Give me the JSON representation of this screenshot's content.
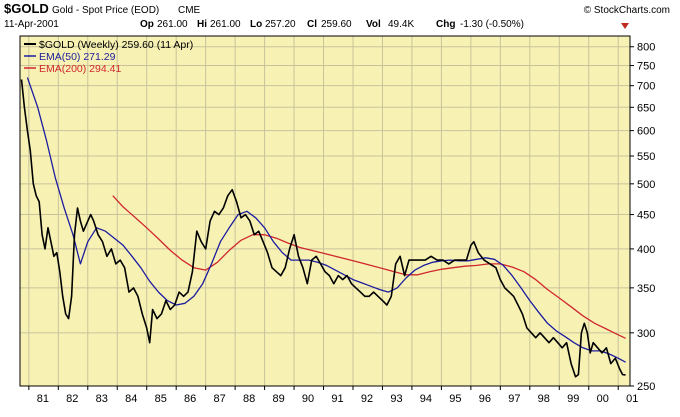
{
  "header": {
    "symbol": "$GOLD",
    "name": "Gold - Spot Price (EOD)",
    "exchange": "CME",
    "date": "11-Apr-2001",
    "open_label": "Op",
    "open_value": "261.00",
    "high_label": "Hi",
    "high_value": "261.00",
    "low_label": "Lo",
    "low_value": "257.20",
    "close_label": "Cl",
    "close_value": "259.60",
    "vol_label": "Vol",
    "vol_value": "49.4K",
    "chg_label": "Chg",
    "chg_value": "-1.30 (-0.50%)",
    "copyright": "© StockCharts.com"
  },
  "colors": {
    "background": "#f7f2b4",
    "price": "#000000",
    "ema50": "#1c1ca0",
    "ema200": "#d0262e",
    "down_arrow": "#c0281e"
  },
  "chart_data": {
    "type": "line",
    "log_scale": true,
    "grid": true,
    "legend_placement": "top-left",
    "ylim": [
      250,
      830
    ],
    "xlim": [
      1980.7,
      2001.4
    ],
    "yticks": [
      250,
      300,
      350,
      400,
      450,
      500,
      550,
      600,
      650,
      700,
      750,
      800
    ],
    "xticks": [
      {
        "value": 1981,
        "label": "81"
      },
      {
        "value": 1982,
        "label": "82"
      },
      {
        "value": 1983,
        "label": "83"
      },
      {
        "value": 1984,
        "label": "84"
      },
      {
        "value": 1985,
        "label": "85"
      },
      {
        "value": 1986,
        "label": "86"
      },
      {
        "value": 1987,
        "label": "87"
      },
      {
        "value": 1988,
        "label": "88"
      },
      {
        "value": 1989,
        "label": "89"
      },
      {
        "value": 1990,
        "label": "90"
      },
      {
        "value": 1991,
        "label": "91"
      },
      {
        "value": 1992,
        "label": "92"
      },
      {
        "value": 1993,
        "label": "93"
      },
      {
        "value": 1994,
        "label": "94"
      },
      {
        "value": 1995,
        "label": "95"
      },
      {
        "value": 1996,
        "label": "96"
      },
      {
        "value": 1997,
        "label": "97"
      },
      {
        "value": 1998,
        "label": "98"
      },
      {
        "value": 1999,
        "label": "99"
      },
      {
        "value": 2000,
        "label": "00"
      },
      {
        "value": 2001,
        "label": "01"
      }
    ],
    "series": [
      {
        "name": "$GOLD (Weekly) 259.60 (11 Apr)",
        "x": [
          1980.75,
          1980.85,
          1980.95,
          1981.05,
          1981.15,
          1981.25,
          1981.35,
          1981.45,
          1981.55,
          1981.65,
          1981.75,
          1981.85,
          1981.95,
          1982.05,
          1982.15,
          1982.25,
          1982.35,
          1982.45,
          1982.55,
          1982.65,
          1982.75,
          1982.85,
          1983.0,
          1983.1,
          1983.2,
          1983.35,
          1983.5,
          1983.65,
          1983.8,
          1983.95,
          1984.1,
          1984.25,
          1984.4,
          1984.55,
          1984.7,
          1984.85,
          1985.0,
          1985.1,
          1985.2,
          1985.35,
          1985.5,
          1985.65,
          1985.8,
          1985.95,
          1986.1,
          1986.25,
          1986.4,
          1986.55,
          1986.7,
          1986.85,
          1987.0,
          1987.15,
          1987.3,
          1987.45,
          1987.6,
          1987.75,
          1987.9,
          1988.05,
          1988.2,
          1988.35,
          1988.5,
          1988.65,
          1988.8,
          1988.95,
          1989.1,
          1989.25,
          1989.4,
          1989.55,
          1989.7,
          1989.85,
          1990.0,
          1990.15,
          1990.3,
          1990.45,
          1990.6,
          1990.75,
          1990.9,
          1991.05,
          1991.2,
          1991.35,
          1991.5,
          1991.65,
          1991.8,
          1991.95,
          1992.1,
          1992.25,
          1992.4,
          1992.55,
          1992.7,
          1992.85,
          1993.0,
          1993.15,
          1993.3,
          1993.45,
          1993.6,
          1993.75,
          1993.9,
          1994.05,
          1994.25,
          1994.45,
          1994.65,
          1994.85,
          1995.05,
          1995.25,
          1995.45,
          1995.65,
          1995.85,
          1996.0,
          1996.1,
          1996.25,
          1996.45,
          1996.65,
          1996.85,
          1997.0,
          1997.15,
          1997.3,
          1997.45,
          1997.6,
          1997.75,
          1997.9,
          1998.05,
          1998.2,
          1998.35,
          1998.5,
          1998.65,
          1998.8,
          1998.95,
          1999.1,
          1999.25,
          1999.4,
          1999.55,
          1999.65,
          1999.75,
          1999.85,
          1999.95,
          2000.05,
          2000.15,
          2000.3,
          2000.45,
          2000.6,
          2000.75,
          2000.9,
          2001.05,
          2001.15,
          2001.25
        ],
        "values": [
          715,
          650,
          600,
          560,
          500,
          480,
          470,
          420,
          400,
          430,
          410,
          390,
          395,
          370,
          340,
          320,
          315,
          340,
          420,
          460,
          440,
          425,
          440,
          450,
          440,
          420,
          410,
          390,
          400,
          380,
          385,
          375,
          345,
          350,
          340,
          320,
          305,
          290,
          325,
          315,
          320,
          335,
          325,
          330,
          345,
          340,
          345,
          370,
          425,
          410,
          400,
          440,
          455,
          450,
          460,
          480,
          490,
          470,
          445,
          450,
          440,
          420,
          425,
          410,
          395,
          375,
          370,
          365,
          375,
          400,
          420,
          390,
          375,
          355,
          385,
          390,
          380,
          370,
          365,
          355,
          365,
          360,
          365,
          355,
          350,
          345,
          340,
          340,
          345,
          340,
          335,
          330,
          340,
          380,
          390,
          365,
          385,
          385,
          385,
          385,
          390,
          385,
          385,
          380,
          385,
          385,
          385,
          405,
          410,
          395,
          385,
          380,
          375,
          360,
          350,
          345,
          340,
          330,
          320,
          305,
          300,
          295,
          300,
          295,
          290,
          295,
          290,
          285,
          290,
          270,
          258,
          260,
          300,
          310,
          300,
          280,
          290,
          285,
          280,
          285,
          270,
          275,
          265,
          260,
          259.6
        ]
      },
      {
        "name": "EMA(50) 271.29",
        "x": [
          1980.95,
          1981.3,
          1981.6,
          1981.9,
          1982.2,
          1982.5,
          1982.75,
          1983.0,
          1983.3,
          1983.6,
          1983.9,
          1984.2,
          1984.5,
          1984.8,
          1985.1,
          1985.4,
          1985.7,
          1986.0,
          1986.3,
          1986.6,
          1986.9,
          1987.2,
          1987.5,
          1987.8,
          1988.1,
          1988.4,
          1988.7,
          1989.0,
          1989.3,
          1989.6,
          1989.9,
          1990.2,
          1990.5,
          1990.8,
          1991.1,
          1991.4,
          1991.7,
          1992.0,
          1992.3,
          1992.6,
          1992.9,
          1993.2,
          1993.5,
          1993.8,
          1994.1,
          1994.4,
          1994.7,
          1995.0,
          1995.3,
          1995.6,
          1995.9,
          1996.2,
          1996.5,
          1996.8,
          1997.1,
          1997.4,
          1997.7,
          1998.0,
          1998.3,
          1998.6,
          1998.9,
          1999.2,
          1999.5,
          1999.8,
          2000.1,
          2000.4,
          2000.7,
          2001.0,
          2001.25
        ],
        "values": [
          720,
          650,
          580,
          510,
          460,
          420,
          380,
          410,
          430,
          425,
          415,
          405,
          390,
          375,
          358,
          345,
          335,
          330,
          332,
          340,
          355,
          380,
          410,
          430,
          450,
          455,
          445,
          430,
          410,
          395,
          385,
          385,
          385,
          382,
          378,
          372,
          366,
          360,
          356,
          352,
          348,
          345,
          350,
          362,
          372,
          378,
          382,
          384,
          385,
          384,
          384,
          386,
          388,
          386,
          378,
          365,
          350,
          335,
          322,
          310,
          302,
          296,
          290,
          285,
          282,
          282,
          279,
          275,
          271.3
        ]
      },
      {
        "name": "EMA(200) 294.41",
        "x": [
          1983.85,
          1984.2,
          1984.6,
          1985.0,
          1985.4,
          1985.8,
          1986.2,
          1986.6,
          1987.0,
          1987.4,
          1987.8,
          1988.2,
          1988.6,
          1989.0,
          1989.4,
          1989.8,
          1990.2,
          1990.6,
          1991.0,
          1991.4,
          1991.8,
          1992.2,
          1992.6,
          1993.0,
          1993.4,
          1993.8,
          1994.2,
          1994.6,
          1995.0,
          1995.4,
          1995.8,
          1996.2,
          1996.6,
          1997.0,
          1997.4,
          1997.8,
          1998.2,
          1998.6,
          1999.0,
          1999.4,
          1999.8,
          2000.2,
          2000.6,
          2001.0,
          2001.25
        ],
        "values": [
          480,
          462,
          446,
          430,
          414,
          398,
          385,
          375,
          372,
          382,
          398,
          412,
          420,
          420,
          415,
          408,
          402,
          398,
          394,
          390,
          386,
          382,
          378,
          374,
          370,
          366,
          366,
          370,
          373,
          375,
          377,
          378,
          380,
          380,
          376,
          370,
          360,
          348,
          338,
          328,
          318,
          310,
          304,
          298,
          294.4
        ]
      }
    ]
  }
}
